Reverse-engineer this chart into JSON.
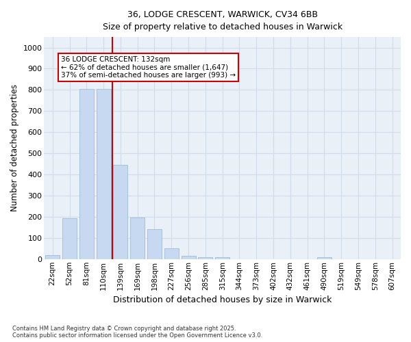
{
  "title_line1": "36, LODGE CRESCENT, WARWICK, CV34 6BB",
  "title_line2": "Size of property relative to detached houses in Warwick",
  "xlabel": "Distribution of detached houses by size in Warwick",
  "ylabel": "Number of detached properties",
  "categories": [
    "22sqm",
    "52sqm",
    "81sqm",
    "110sqm",
    "139sqm",
    "169sqm",
    "198sqm",
    "227sqm",
    "256sqm",
    "285sqm",
    "315sqm",
    "344sqm",
    "373sqm",
    "402sqm",
    "432sqm",
    "461sqm",
    "490sqm",
    "519sqm",
    "549sqm",
    "578sqm",
    "607sqm"
  ],
  "values": [
    18,
    193,
    803,
    803,
    447,
    197,
    140,
    50,
    15,
    10,
    10,
    0,
    0,
    0,
    0,
    0,
    10,
    0,
    0,
    0,
    0
  ],
  "bar_color": "#c6d9f0",
  "bar_edgecolor": "#a0bcd8",
  "grid_color": "#d0dcea",
  "background_color": "#eaf0f8",
  "fig_background": "#ffffff",
  "vline_x": 4.0,
  "vline_color": "#cc0000",
  "annotation_text": "36 LODGE CRESCENT: 132sqm\n← 62% of detached houses are smaller (1,647)\n37% of semi-detached houses are larger (993) →",
  "annotation_box_color": "#cc0000",
  "annotation_text_color": "#000000",
  "footer_line1": "Contains HM Land Registry data © Crown copyright and database right 2025.",
  "footer_line2": "Contains public sector information licensed under the Open Government Licence v3.0.",
  "ylim": [
    0,
    1050
  ],
  "yticks": [
    0,
    100,
    200,
    300,
    400,
    500,
    600,
    700,
    800,
    900,
    1000
  ]
}
